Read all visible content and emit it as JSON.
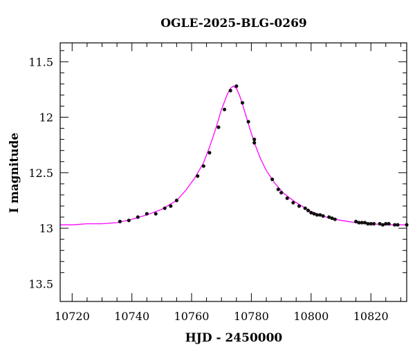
{
  "chart_data": {
    "type": "scatter",
    "title": "OGLE-2025-BLG-0269",
    "xlabel": "HJD - 2450000",
    "ylabel": "I magnitude",
    "xlim": [
      10716,
      10832
    ],
    "ylim": [
      13.66,
      11.33
    ],
    "y_inverted": true,
    "x_ticks": [
      10720,
      10740,
      10760,
      10780,
      10800,
      10820
    ],
    "x_tick_labels": [
      "10720",
      "10740",
      "10760",
      "10780",
      "10800",
      "10820"
    ],
    "y_ticks": [
      11.5,
      12,
      12.5,
      13,
      13.5
    ],
    "y_tick_labels": [
      "11.5",
      "12",
      "12.5",
      "13",
      "13.5"
    ],
    "grid": false,
    "series": [
      {
        "kind": "points",
        "color": "#111111",
        "x": [
          10736,
          10739,
          10742,
          10745,
          10748,
          10751,
          10753,
          10755,
          10762,
          10764,
          10766,
          10769,
          10771,
          10773,
          10775,
          10777,
          10779,
          10781,
          10781,
          10787,
          10789,
          10790,
          10792,
          10794,
          10796,
          10798,
          10799,
          10800,
          10801,
          10802,
          10803,
          10804,
          10806,
          10807,
          10808,
          10815,
          10816,
          10817,
          10818,
          10819,
          10820,
          10821,
          10823,
          10824,
          10825,
          10826,
          10828,
          10829,
          10832
        ],
        "y": [
          12.94,
          12.93,
          12.9,
          12.87,
          12.87,
          12.82,
          12.8,
          12.75,
          12.53,
          12.44,
          12.32,
          12.09,
          11.93,
          11.76,
          11.72,
          11.87,
          12.04,
          12.2,
          12.23,
          12.56,
          12.65,
          12.68,
          12.73,
          12.77,
          12.8,
          12.82,
          12.84,
          12.86,
          12.87,
          12.88,
          12.88,
          12.89,
          12.9,
          12.91,
          12.92,
          12.94,
          12.95,
          12.95,
          12.95,
          12.96,
          12.96,
          12.96,
          12.96,
          12.97,
          12.96,
          12.96,
          12.97,
          12.97,
          12.97
        ]
      },
      {
        "kind": "model",
        "color": "#ff00ff",
        "x": [
          10716,
          10720,
          10725,
          10730,
          10735,
          10740,
          10745,
          10750,
          10755,
          10758,
          10761,
          10764,
          10766,
          10768,
          10770,
          10772,
          10773,
          10774,
          10775,
          10776,
          10777,
          10779,
          10781,
          10783,
          10785,
          10788,
          10791,
          10795,
          10800,
          10805,
          10810,
          10815,
          10820,
          10825,
          10832
        ],
        "y": [
          12.97,
          12.97,
          12.96,
          12.96,
          12.95,
          12.92,
          12.88,
          12.83,
          12.75,
          12.66,
          12.55,
          12.41,
          12.27,
          12.11,
          11.93,
          11.79,
          11.74,
          11.72,
          11.74,
          11.8,
          11.88,
          12.06,
          12.23,
          12.37,
          12.48,
          12.6,
          12.69,
          12.77,
          12.85,
          12.9,
          12.93,
          12.95,
          12.96,
          12.97,
          12.97
        ]
      }
    ]
  }
}
